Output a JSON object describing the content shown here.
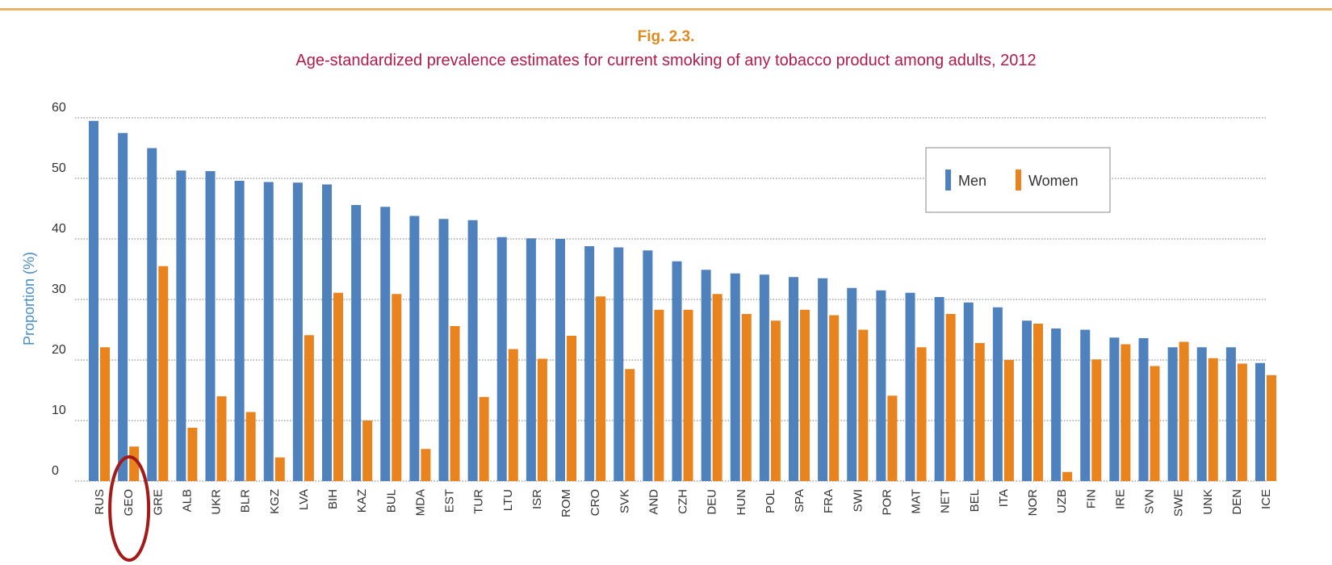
{
  "chart_data": {
    "type": "bar",
    "fig_number": "Fig. 2.3.",
    "title": "Age-standardized prevalence estimates for current smoking of any tobacco product among adults, 2012",
    "xlabel": "",
    "ylabel": "Proportion (%)",
    "ylim": [
      0,
      60
    ],
    "yticks": [
      0,
      10,
      20,
      30,
      40,
      50,
      60
    ],
    "grid": true,
    "legend_position": "top-right",
    "highlighted_category": "GEO",
    "categories": [
      "RUS",
      "GEO",
      "GRE",
      "ALB",
      "UKR",
      "BLR",
      "KGZ",
      "LVA",
      "BIH",
      "KAZ",
      "BUL",
      "MDA",
      "EST",
      "TUR",
      "LTU",
      "ISR",
      "ROM",
      "CRO",
      "SVK",
      "AND",
      "CZH",
      "DEU",
      "HUN",
      "POL",
      "SPA",
      "FRA",
      "SWI",
      "POR",
      "MAT",
      "NET",
      "BEL",
      "ITA",
      "NOR",
      "UZB",
      "FIN",
      "IRE",
      "SVN",
      "SWE",
      "UNK",
      "DEN",
      "ICE"
    ],
    "series": [
      {
        "name": "Men",
        "color": "#4f81bd",
        "values": [
          59.5,
          57.5,
          55,
          51.3,
          51.2,
          49.6,
          49.4,
          49.3,
          49,
          45.6,
          45.3,
          43.8,
          43.3,
          43.1,
          40.3,
          40.1,
          40,
          38.8,
          38.6,
          38.1,
          36.3,
          34.9,
          34.3,
          34.1,
          33.7,
          33.5,
          31.9,
          31.5,
          31.1,
          30.4,
          29.5,
          28.7,
          26.5,
          25.2,
          25,
          23.7,
          23.6,
          22.1,
          22.1,
          22.1,
          19.5
        ]
      },
      {
        "name": "Women",
        "color": "#e8831e",
        "values": [
          22.1,
          5.7,
          35.5,
          8.8,
          14,
          11.4,
          3.9,
          24.1,
          31.1,
          10,
          30.9,
          5.3,
          25.6,
          13.9,
          21.8,
          20.2,
          24,
          30.5,
          18.5,
          28.3,
          28.3,
          30.9,
          27.6,
          26.5,
          28.3,
          27.4,
          25,
          14.1,
          22.1,
          27.6,
          22.8,
          20,
          26,
          1.5,
          20.1,
          22.6,
          19,
          23,
          20.3,
          19.4,
          17.5
        ]
      }
    ]
  }
}
